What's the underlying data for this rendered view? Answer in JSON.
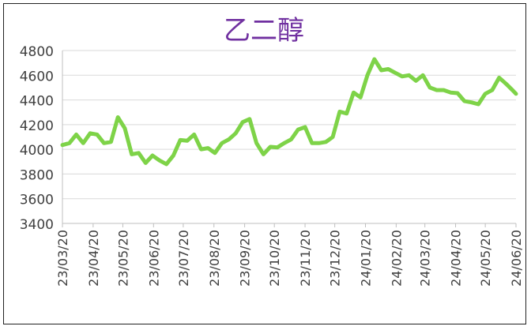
{
  "chart_data": {
    "type": "line",
    "title": "乙二醇",
    "xlabel": "",
    "ylabel": "",
    "ylim": [
      3400,
      4800
    ],
    "yticks": [
      3400,
      3600,
      3800,
      4000,
      4200,
      4400,
      4600,
      4800
    ],
    "xticks": [
      "23/03/20",
      "23/04/20",
      "23/05/20",
      "23/06/20",
      "23/07/20",
      "23/08/20",
      "23/09/20",
      "23/10/20",
      "23/11/20",
      "23/12/20",
      "24/01/20",
      "24/02/20",
      "24/03/20",
      "24/04/20",
      "24/05/20",
      "24/06/20"
    ],
    "grid": "horizontal",
    "colors": {
      "line": "#7ed348",
      "title": "#7030a0",
      "grid": "#d9d9d9",
      "axis": "#bfbfbf",
      "text": "#404040"
    },
    "series": [
      {
        "x": [
          "2023-03-20",
          "2023-03-27",
          "2023-04-03",
          "2023-04-10",
          "2023-04-17",
          "2023-04-24",
          "2023-05-01",
          "2023-05-08",
          "2023-05-15",
          "2023-05-22",
          "2023-05-29",
          "2023-06-05",
          "2023-06-12",
          "2023-06-19",
          "2023-06-26",
          "2023-07-03",
          "2023-07-10",
          "2023-07-17",
          "2023-07-24",
          "2023-07-31",
          "2023-08-07",
          "2023-08-14",
          "2023-08-21",
          "2023-08-28",
          "2023-09-04",
          "2023-09-11",
          "2023-09-18",
          "2023-09-25",
          "2023-10-02",
          "2023-10-09",
          "2023-10-16",
          "2023-10-23",
          "2023-10-30",
          "2023-11-06",
          "2023-11-13",
          "2023-11-20",
          "2023-11-27",
          "2023-12-04",
          "2023-12-11",
          "2023-12-18",
          "2023-12-25",
          "2024-01-01",
          "2024-01-08",
          "2024-01-15",
          "2024-01-22",
          "2024-01-29",
          "2024-02-05",
          "2024-02-12",
          "2024-02-19",
          "2024-02-26",
          "2024-03-04",
          "2024-03-11",
          "2024-03-18",
          "2024-03-25",
          "2024-04-01",
          "2024-04-08",
          "2024-04-15",
          "2024-04-22",
          "2024-04-29",
          "2024-05-06",
          "2024-05-13",
          "2024-05-20",
          "2024-05-27",
          "2024-06-03",
          "2024-06-10",
          "2024-06-17",
          "2024-06-20"
        ],
        "values": [
          4035,
          4050,
          4120,
          4050,
          4130,
          4120,
          4050,
          4060,
          4260,
          4170,
          3960,
          3970,
          3890,
          3950,
          3910,
          3880,
          3950,
          4075,
          4070,
          4120,
          4000,
          4010,
          3970,
          4050,
          4080,
          4130,
          4220,
          4245,
          4050,
          3960,
          4020,
          4015,
          4050,
          4080,
          4160,
          4180,
          4050,
          4050,
          4060,
          4100,
          4305,
          4290,
          4460,
          4420,
          4600,
          4730,
          4640,
          4650,
          4620,
          4590,
          4600,
          4555,
          4600,
          4500,
          4480,
          4480,
          4460,
          4455,
          4390,
          4380,
          4365,
          4450,
          4480,
          4580,
          4530,
          4475,
          4450
        ]
      }
    ]
  }
}
